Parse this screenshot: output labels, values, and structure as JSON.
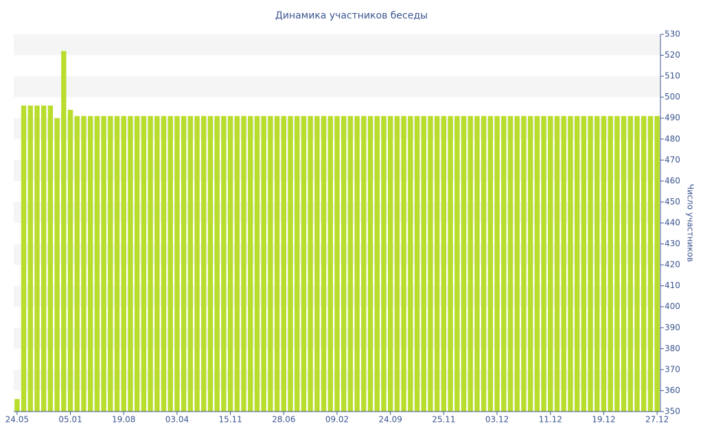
{
  "chart_data": {
    "type": "bar",
    "title": "Динамика участников беседы",
    "ylabel": "Число участников",
    "categories": [
      "24.05",
      null,
      null,
      null,
      null,
      null,
      null,
      null,
      "05.01",
      null,
      null,
      null,
      null,
      null,
      null,
      null,
      "19.08",
      null,
      null,
      null,
      null,
      null,
      null,
      null,
      "03.04",
      null,
      null,
      null,
      null,
      null,
      null,
      null,
      "15.11",
      null,
      null,
      null,
      null,
      null,
      null,
      null,
      "28.06",
      null,
      null,
      null,
      null,
      null,
      null,
      null,
      "09.02",
      null,
      null,
      null,
      null,
      null,
      null,
      null,
      "24.09",
      null,
      null,
      null,
      null,
      null,
      null,
      null,
      "25.11",
      null,
      null,
      null,
      null,
      null,
      null,
      null,
      "03.12",
      null,
      null,
      null,
      null,
      null,
      null,
      null,
      "11.12",
      null,
      null,
      null,
      null,
      null,
      null,
      null,
      "19.12",
      null,
      null,
      null,
      null,
      null,
      null,
      null,
      "27.12"
    ],
    "values": [
      356,
      496,
      496,
      496,
      496,
      496,
      490,
      522,
      494,
      491,
      491,
      491,
      491,
      491,
      491,
      491,
      491,
      491,
      491,
      491,
      491,
      491,
      491,
      491,
      491,
      491,
      491,
      491,
      491,
      491,
      491,
      491,
      491,
      491,
      491,
      491,
      491,
      491,
      491,
      491,
      491,
      491,
      491,
      491,
      491,
      491,
      491,
      491,
      491,
      491,
      491,
      491,
      491,
      491,
      491,
      491,
      491,
      491,
      491,
      491,
      491,
      491,
      491,
      491,
      491,
      491,
      491,
      491,
      491,
      491,
      491,
      491,
      491,
      491,
      491,
      491,
      491,
      491,
      491,
      491,
      491,
      491,
      491,
      491,
      491,
      491,
      491,
      491,
      491,
      491,
      491,
      491,
      491,
      491,
      491,
      491,
      491
    ],
    "color": "#b8dd2c",
    "ylim": [
      350,
      530
    ],
    "yticks": [
      350,
      360,
      370,
      380,
      390,
      400,
      410,
      420,
      430,
      440,
      450,
      460,
      470,
      480,
      490,
      500,
      510,
      520,
      530
    ],
    "grid": true
  }
}
